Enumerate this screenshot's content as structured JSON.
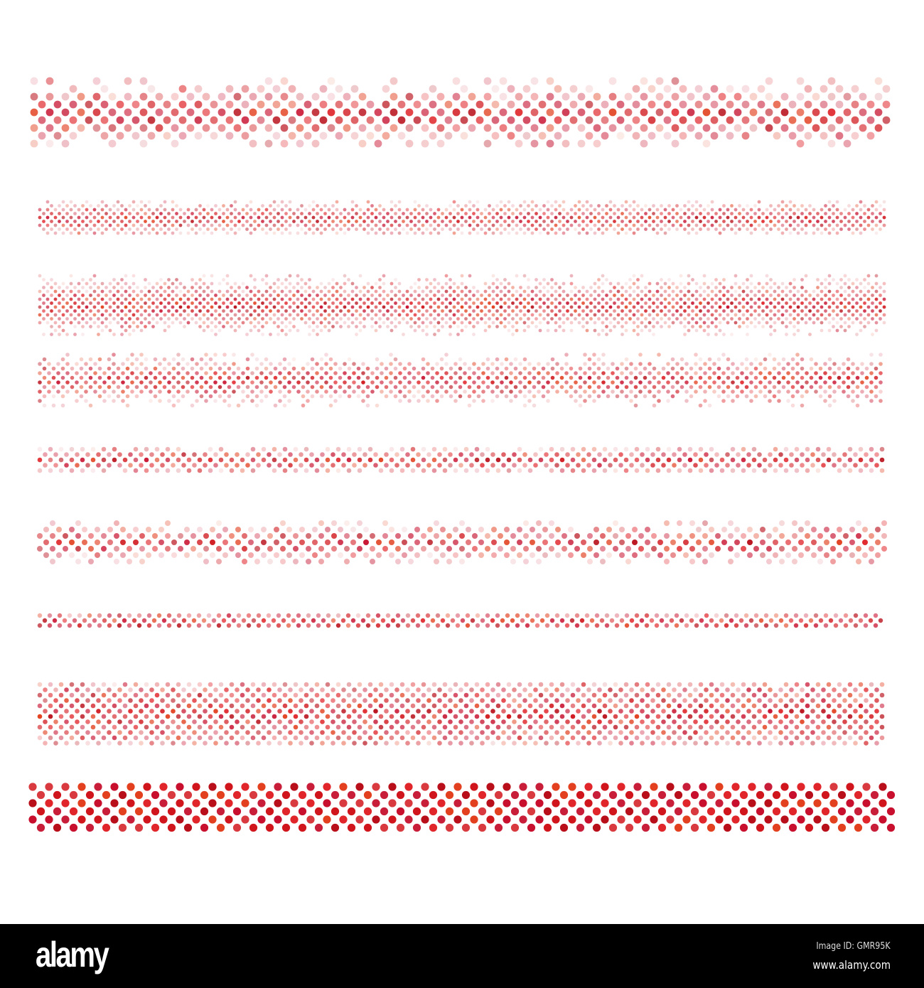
{
  "artwork": {
    "description_colors": {
      "primary": "#d0161c",
      "mid": "#e05055",
      "light": "#f2a0a3",
      "palest": "#fbdcdd",
      "orange_red": "#e2401f",
      "crimson": "#c8102e"
    },
    "band_count": 9
  },
  "footer": {
    "logo": "alamy",
    "image_id": "Image ID: GMR95K",
    "website": "www.alamy.com"
  }
}
